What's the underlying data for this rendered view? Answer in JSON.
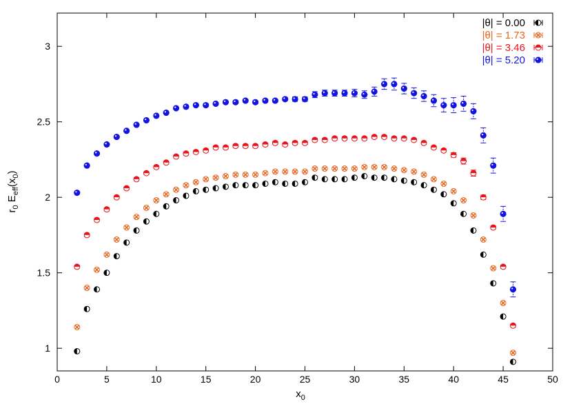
{
  "chart_data": {
    "type": "scatter",
    "title": "",
    "xlabel": "x",
    "xlabel_sub": "0",
    "ylabel": "r",
    "ylabel_sub": "0",
    "ylabel_mid": " E",
    "ylabel_sub2": "eff",
    "ylabel_tail": "(x",
    "ylabel_sub3": "0",
    "ylabel_end": ")",
    "xlim": [
      0,
      50
    ],
    "ylim": [
      0.85,
      3.22
    ],
    "xticks": [
      0,
      5,
      10,
      15,
      20,
      25,
      30,
      35,
      40,
      45,
      50
    ],
    "yticks": [
      1,
      1.5,
      2,
      2.5,
      3
    ],
    "grid": false,
    "legend_position": "top-right",
    "series": [
      {
        "name": "|θ| = 0.00",
        "color": "#000000",
        "x": [
          2,
          3,
          4,
          5,
          6,
          7,
          8,
          9,
          10,
          11,
          12,
          13,
          14,
          15,
          16,
          17,
          18,
          19,
          20,
          21,
          22,
          23,
          24,
          25,
          26,
          27,
          28,
          29,
          30,
          31,
          32,
          33,
          34,
          35,
          36,
          37,
          38,
          39,
          40,
          41,
          42,
          43,
          44,
          45,
          46
        ],
        "y": [
          0.98,
          1.26,
          1.39,
          1.5,
          1.61,
          1.7,
          1.78,
          1.84,
          1.89,
          1.94,
          1.98,
          2.01,
          2.04,
          2.05,
          2.06,
          2.07,
          2.08,
          2.08,
          2.08,
          2.09,
          2.1,
          2.09,
          2.09,
          2.1,
          2.13,
          2.12,
          2.12,
          2.12,
          2.13,
          2.14,
          2.13,
          2.13,
          2.12,
          2.11,
          2.1,
          2.08,
          2.05,
          2.02,
          1.96,
          1.89,
          1.78,
          1.62,
          1.43,
          1.21,
          0.91
        ],
        "err": [
          0,
          0,
          0,
          0,
          0,
          0,
          0,
          0,
          0,
          0,
          0,
          0,
          0,
          0,
          0,
          0,
          0,
          0,
          0,
          0,
          0,
          0,
          0,
          0,
          0,
          0,
          0,
          0,
          0,
          0,
          0,
          0,
          0,
          0,
          0,
          0,
          0,
          0,
          0,
          0,
          0,
          0,
          0,
          0,
          0
        ]
      },
      {
        "name": "|θ| = 1.73",
        "color": "#e8651f",
        "x": [
          2,
          3,
          4,
          5,
          6,
          7,
          8,
          9,
          10,
          11,
          12,
          13,
          14,
          15,
          16,
          17,
          18,
          19,
          20,
          21,
          22,
          23,
          24,
          25,
          26,
          27,
          28,
          29,
          30,
          31,
          32,
          33,
          34,
          35,
          36,
          37,
          38,
          39,
          40,
          41,
          42,
          43,
          44,
          45,
          46
        ],
        "y": [
          1.14,
          1.4,
          1.52,
          1.62,
          1.72,
          1.8,
          1.87,
          1.93,
          1.98,
          2.02,
          2.05,
          2.08,
          2.1,
          2.12,
          2.13,
          2.14,
          2.15,
          2.15,
          2.15,
          2.16,
          2.17,
          2.17,
          2.17,
          2.17,
          2.19,
          2.19,
          2.19,
          2.19,
          2.19,
          2.2,
          2.2,
          2.2,
          2.19,
          2.18,
          2.17,
          2.15,
          2.12,
          2.09,
          2.04,
          1.98,
          1.88,
          1.72,
          1.53,
          1.3,
          0.97
        ],
        "err": [
          0,
          0,
          0,
          0,
          0,
          0,
          0,
          0,
          0,
          0,
          0,
          0,
          0,
          0,
          0,
          0,
          0,
          0,
          0,
          0,
          0,
          0,
          0,
          0,
          0,
          0,
          0,
          0,
          0,
          0,
          0,
          0,
          0,
          0,
          0,
          0,
          0,
          0,
          0,
          0,
          0,
          0,
          0,
          0,
          0
        ]
      },
      {
        "name": "|θ| = 3.46",
        "color": "#e8141c",
        "x": [
          2,
          3,
          4,
          5,
          6,
          7,
          8,
          9,
          10,
          11,
          12,
          13,
          14,
          15,
          16,
          17,
          18,
          19,
          20,
          21,
          22,
          23,
          24,
          25,
          26,
          27,
          28,
          29,
          30,
          31,
          32,
          33,
          34,
          35,
          36,
          37,
          38,
          39,
          40,
          41,
          42,
          43,
          44,
          45,
          46
        ],
        "y": [
          1.54,
          1.75,
          1.85,
          1.92,
          2.0,
          2.06,
          2.12,
          2.16,
          2.2,
          2.23,
          2.27,
          2.29,
          2.3,
          2.31,
          2.33,
          2.33,
          2.34,
          2.34,
          2.34,
          2.35,
          2.36,
          2.35,
          2.36,
          2.36,
          2.38,
          2.38,
          2.39,
          2.39,
          2.39,
          2.39,
          2.4,
          2.4,
          2.39,
          2.39,
          2.38,
          2.36,
          2.33,
          2.31,
          2.28,
          2.24,
          2.16,
          2.0,
          1.8,
          1.54,
          1.15
        ],
        "err": [
          0.01,
          0.01,
          0.01,
          0.01,
          0.01,
          0.01,
          0.01,
          0.01,
          0.01,
          0.01,
          0.01,
          0.01,
          0.01,
          0.01,
          0.01,
          0.01,
          0.01,
          0.01,
          0.01,
          0.01,
          0.01,
          0.01,
          0.01,
          0.01,
          0.01,
          0.01,
          0.01,
          0.01,
          0.01,
          0.01,
          0.01,
          0.01,
          0.01,
          0.01,
          0.01,
          0.01,
          0.01,
          0.01,
          0.015,
          0.02,
          0.02,
          0.015,
          0.01,
          0.01,
          0.01
        ]
      },
      {
        "name": "|θ| = 5.20",
        "color": "#1414e0",
        "x": [
          2,
          3,
          4,
          5,
          6,
          7,
          8,
          9,
          10,
          11,
          12,
          13,
          14,
          15,
          16,
          17,
          18,
          19,
          20,
          21,
          22,
          23,
          24,
          25,
          26,
          27,
          28,
          29,
          30,
          31,
          32,
          33,
          34,
          35,
          36,
          37,
          38,
          39,
          40,
          41,
          42,
          43,
          44,
          45,
          46
        ],
        "y": [
          2.03,
          2.21,
          2.29,
          2.35,
          2.4,
          2.44,
          2.48,
          2.51,
          2.54,
          2.56,
          2.59,
          2.6,
          2.61,
          2.61,
          2.62,
          2.63,
          2.63,
          2.64,
          2.63,
          2.64,
          2.64,
          2.65,
          2.65,
          2.65,
          2.68,
          2.69,
          2.69,
          2.69,
          2.69,
          2.68,
          2.7,
          2.75,
          2.75,
          2.72,
          2.69,
          2.67,
          2.64,
          2.61,
          2.61,
          2.62,
          2.57,
          2.41,
          2.21,
          1.89,
          1.39
        ],
        "err": [
          0.005,
          0.005,
          0.005,
          0.005,
          0.005,
          0.005,
          0.005,
          0.005,
          0.005,
          0.005,
          0.005,
          0.005,
          0.005,
          0.005,
          0.005,
          0.005,
          0.01,
          0.01,
          0.01,
          0.01,
          0.01,
          0.01,
          0.015,
          0.015,
          0.02,
          0.02,
          0.02,
          0.02,
          0.025,
          0.025,
          0.03,
          0.035,
          0.04,
          0.035,
          0.035,
          0.035,
          0.04,
          0.045,
          0.05,
          0.05,
          0.05,
          0.05,
          0.05,
          0.05,
          0.05
        ]
      }
    ]
  }
}
